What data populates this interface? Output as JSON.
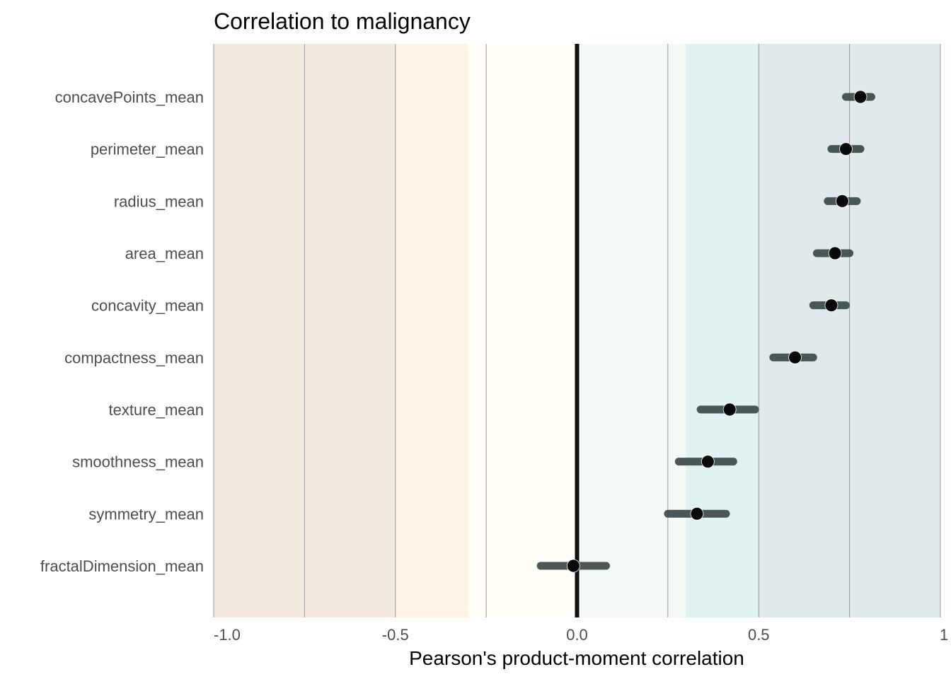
{
  "chart_data": {
    "type": "scatter",
    "title": "Correlation to malignancy",
    "xlabel": "Pearson's product-moment correlation",
    "ylabel": "",
    "xlim": [
      -1.0,
      1.0
    ],
    "grid": false,
    "x_ticks": [
      {
        "value": -1.0,
        "label": "-1.0"
      },
      {
        "value": -0.5,
        "label": "-0.5"
      },
      {
        "value": 0.0,
        "label": "0.0"
      },
      {
        "value": 0.5,
        "label": "0.5"
      },
      {
        "value": 1.0,
        "label": "1"
      }
    ],
    "reference_line": 0.0,
    "background_bands": [
      {
        "from": -1.0,
        "to": -0.5,
        "color": "#f3e9df"
      },
      {
        "from": -0.5,
        "to": -0.3,
        "color": "#fdf3e2"
      },
      {
        "from": -0.3,
        "to": 0.0,
        "color": "#fffdf6"
      },
      {
        "from": 0.0,
        "to": 0.3,
        "color": "#f4faf5"
      },
      {
        "from": 0.3,
        "to": 0.5,
        "color": "#e0f3f2"
      },
      {
        "from": 0.5,
        "to": 1.0,
        "color": "#e0e9eb"
      }
    ],
    "band_dividers": [
      -0.75,
      -0.5,
      -0.25,
      0.25,
      0.5,
      0.75,
      1.0
    ],
    "series": [
      {
        "points": [
          {
            "label": "concavePoints_mean",
            "estimate": 0.78,
            "ci_low": 0.74,
            "ci_high": 0.81
          },
          {
            "label": "perimeter_mean",
            "estimate": 0.74,
            "ci_low": 0.7,
            "ci_high": 0.78
          },
          {
            "label": "radius_mean",
            "estimate": 0.73,
            "ci_low": 0.69,
            "ci_high": 0.77
          },
          {
            "label": "area_mean",
            "estimate": 0.71,
            "ci_low": 0.66,
            "ci_high": 0.75
          },
          {
            "label": "concavity_mean",
            "estimate": 0.7,
            "ci_low": 0.65,
            "ci_high": 0.74
          },
          {
            "label": "compactness_mean",
            "estimate": 0.6,
            "ci_low": 0.54,
            "ci_high": 0.65
          },
          {
            "label": "texture_mean",
            "estimate": 0.42,
            "ci_low": 0.34,
            "ci_high": 0.49
          },
          {
            "label": "smoothness_mean",
            "estimate": 0.36,
            "ci_low": 0.28,
            "ci_high": 0.43
          },
          {
            "label": "symmetry_mean",
            "estimate": 0.33,
            "ci_low": 0.25,
            "ci_high": 0.41
          },
          {
            "label": "fractalDimension_mean",
            "estimate": -0.01,
            "ci_low": -0.1,
            "ci_high": 0.08
          }
        ]
      }
    ],
    "colors": {
      "divider": "#9a9a9a",
      "zero_line": "#111111",
      "point": "#0a0a0a",
      "ci_line": "#3d4a4a"
    }
  }
}
